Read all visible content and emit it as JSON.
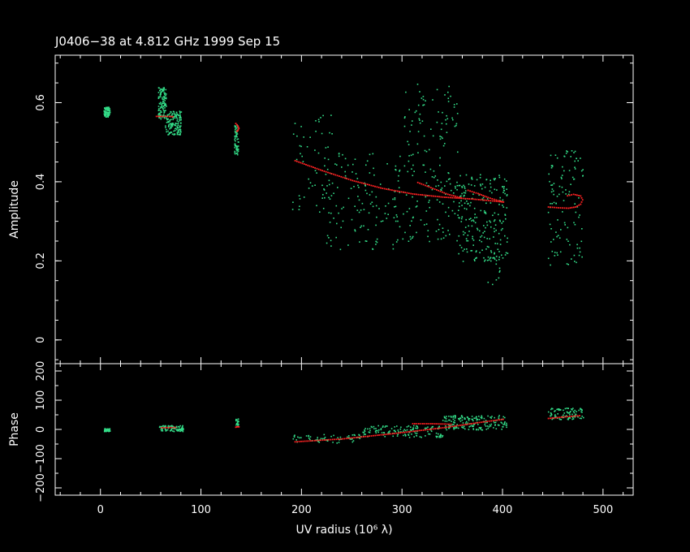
{
  "title": "J0406−38 at 4.812 GHz 1999 Sep 15",
  "colors": {
    "background": "#000000",
    "axes": "#ffffff",
    "data": "#33dd88",
    "model": "#ff2222"
  },
  "chart_data": [
    {
      "type": "scatter",
      "panel": "top",
      "title": "J0406−38 at 4.812 GHz 1999 Sep 15",
      "xlabel": "",
      "ylabel": "Amplitude",
      "xlim": [
        -45,
        530
      ],
      "ylim": [
        -0.06,
        0.72
      ],
      "yticks": [
        0,
        0.2,
        0.4,
        0.6
      ],
      "ytick_labels": [
        "0",
        "0.2",
        "0.4",
        "0.6"
      ],
      "grid": false,
      "series": [
        {
          "role": "data",
          "clusters": [
            {
              "x": [
                3,
                9
              ],
              "y": [
                0.565,
                0.59
              ],
              "n": 90
            },
            {
              "x": [
                57,
                65
              ],
              "y": [
                0.56,
                0.64
              ],
              "n": 110
            },
            {
              "x": [
                64,
                80
              ],
              "y": [
                0.52,
                0.58
              ],
              "n": 150
            },
            {
              "x": [
                133,
                137
              ],
              "y": [
                0.47,
                0.55
              ],
              "n": 60
            },
            {
              "x": [
                190,
                230
              ],
              "y": [
                0.32,
                0.58
              ],
              "n": 50
            },
            {
              "x": [
                220,
                300
              ],
              "y": [
                0.23,
                0.48
              ],
              "n": 140
            },
            {
              "x": [
                300,
                355
              ],
              "y": [
                0.25,
                0.65
              ],
              "n": 170
            },
            {
              "x": [
                355,
                405
              ],
              "y": [
                0.2,
                0.42
              ],
              "n": 210
            },
            {
              "x": [
                385,
                400
              ],
              "y": [
                0.13,
                0.26
              ],
              "n": 20
            },
            {
              "x": [
                445,
                480
              ],
              "y": [
                0.19,
                0.48
              ],
              "n": 110
            }
          ]
        },
        {
          "role": "model",
          "curves": [
            {
              "x": [
                55,
                62,
                68,
                73
              ],
              "y": [
                0.567,
                0.567,
                0.567,
                0.566
              ]
            },
            {
              "x": [
                134,
                136,
                137,
                136,
                134
              ],
              "y": [
                0.549,
                0.543,
                0.537,
                0.531,
                0.528
              ]
            },
            {
              "x": [
                193,
                220,
                250,
                280,
                310,
                340,
                370,
                395,
                402
              ],
              "y": [
                0.455,
                0.43,
                0.405,
                0.385,
                0.371,
                0.363,
                0.358,
                0.352,
                0.35
              ]
            },
            {
              "x": [
                315,
                330,
                345,
                360
              ],
              "y": [
                0.4,
                0.385,
                0.37,
                0.36
              ]
            },
            {
              "x": [
                365,
                375,
                385,
                395,
                402
              ],
              "y": [
                0.38,
                0.372,
                0.362,
                0.354,
                0.35
              ]
            },
            {
              "x": [
                445,
                455,
                465,
                472,
                477,
                479,
                477,
                470,
                462
              ],
              "y": [
                0.338,
                0.336,
                0.335,
                0.338,
                0.345,
                0.356,
                0.366,
                0.37,
                0.365
              ]
            }
          ]
        }
      ]
    },
    {
      "type": "scatter",
      "panel": "bottom",
      "xlabel": "UV radius  (10⁶ λ)",
      "ylabel": "Phase",
      "xlim": [
        -45,
        530
      ],
      "ylim": [
        -225,
        225
      ],
      "xticks": [
        0,
        100,
        200,
        300,
        400,
        500
      ],
      "xtick_labels": [
        "0",
        "100",
        "200",
        "300",
        "400",
        "500"
      ],
      "yticks": [
        -200,
        -100,
        0,
        100,
        200
      ],
      "ytick_labels": [
        "−200",
        "−100",
        "0",
        "100",
        "200"
      ],
      "grid": false,
      "series": [
        {
          "role": "data",
          "clusters": [
            {
              "x": [
                3,
                9
              ],
              "y": [
                -5,
                5
              ],
              "n": 40
            },
            {
              "x": [
                58,
                82
              ],
              "y": [
                -5,
                15
              ],
              "n": 90
            },
            {
              "x": [
                134,
                137
              ],
              "y": [
                15,
                40
              ],
              "n": 20
            },
            {
              "x": [
                190,
                260
              ],
              "y": [
                -45,
                -15
              ],
              "n": 60
            },
            {
              "x": [
                260,
                340
              ],
              "y": [
                -25,
                15
              ],
              "n": 130
            },
            {
              "x": [
                340,
                405
              ],
              "y": [
                0,
                50
              ],
              "n": 170
            },
            {
              "x": [
                445,
                480
              ],
              "y": [
                35,
                75
              ],
              "n": 90
            }
          ]
        },
        {
          "role": "model",
          "curves": [
            {
              "x": [
                60,
                68,
                76
              ],
              "y": [
                8,
                9,
                9
              ]
            },
            {
              "x": [
                134,
                136,
                138
              ],
              "y": [
                10,
                12,
                10
              ]
            },
            {
              "x": [
                193,
                240,
                290,
                340,
                380,
                402
              ],
              "y": [
                -40,
                -30,
                -12,
                8,
                28,
                38
              ]
            },
            {
              "x": [
                310,
                330,
                350
              ],
              "y": [
                22,
                22,
                20
              ]
            },
            {
              "x": [
                445,
                460,
                478
              ],
              "y": [
                40,
                45,
                50
              ]
            }
          ]
        }
      ]
    }
  ]
}
